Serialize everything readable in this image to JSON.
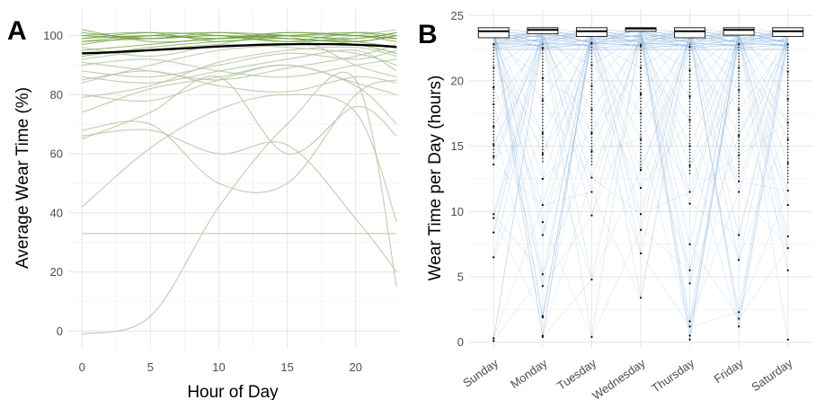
{
  "chart_data": [
    {
      "panel_label": "A",
      "type": "line",
      "xlabel": "Hour of Day",
      "ylabel": "Average Wear Time (%)",
      "xlim": [
        -1,
        23.3
      ],
      "ylim": [
        -6,
        109
      ],
      "x_ticks": [
        0,
        5,
        10,
        15,
        20
      ],
      "y_ticks": [
        0,
        20,
        40,
        60,
        80,
        100
      ],
      "grid": true,
      "colors": {
        "individual_high": "#6a9e3a",
        "individual_low": "#b9c7a6",
        "mean": "#000000"
      },
      "mean_series": {
        "x": [
          0,
          2,
          4,
          6,
          8,
          10,
          12,
          14,
          16,
          18,
          20,
          22,
          23
        ],
        "y": [
          94,
          94.3,
          94.8,
          95.3,
          95.8,
          96.3,
          96.7,
          97.0,
          97.1,
          97.1,
          96.9,
          96.5,
          96.1
        ]
      },
      "individual_series": [
        {
          "x": [
            0,
            5,
            10,
            15,
            20,
            23
          ],
          "y": [
            -1,
            5,
            42,
            70,
            85,
            15
          ]
        },
        {
          "x": [
            0,
            5,
            10,
            15,
            20,
            23
          ],
          "y": [
            42,
            62,
            75,
            80,
            74,
            37
          ]
        },
        {
          "x": [
            0,
            5,
            10,
            15,
            20,
            23
          ],
          "y": [
            33,
            33,
            33,
            33,
            33,
            33
          ]
        },
        {
          "x": [
            0,
            5,
            10,
            15,
            20,
            23
          ],
          "y": [
            66,
            68,
            60,
            63,
            38,
            20
          ]
        },
        {
          "x": [
            0,
            5,
            10,
            15,
            20,
            23
          ],
          "y": [
            68,
            70,
            50,
            50,
            80,
            85
          ]
        },
        {
          "x": [
            0,
            5,
            10,
            15,
            20,
            23
          ],
          "y": [
            65,
            74,
            86,
            60,
            76,
            66
          ]
        },
        {
          "x": [
            0,
            5,
            10,
            15,
            20,
            23
          ],
          "y": [
            80,
            78,
            85,
            90,
            83,
            70
          ]
        },
        {
          "x": [
            0,
            5,
            10,
            15,
            20,
            23
          ],
          "y": [
            74,
            82,
            86,
            90,
            84,
            80
          ]
        },
        {
          "x": [
            0,
            5,
            10,
            15,
            20,
            23
          ],
          "y": [
            85,
            88,
            83,
            81,
            86,
            84
          ]
        },
        {
          "x": [
            0,
            5,
            10,
            15,
            20,
            23
          ],
          "y": [
            88,
            86,
            90,
            94,
            92,
            95
          ]
        },
        {
          "x": [
            0,
            5,
            10,
            15,
            20,
            23
          ],
          "y": [
            90,
            92,
            88,
            86,
            90,
            92
          ]
        },
        {
          "x": [
            0,
            5,
            10,
            15,
            20,
            23
          ],
          "y": [
            96,
            93,
            97,
            100,
            90,
            86
          ]
        },
        {
          "x": [
            0,
            5,
            10,
            15,
            20,
            23
          ],
          "y": [
            84,
            90,
            95,
            97,
            100,
            102
          ]
        },
        {
          "x": [
            0,
            5,
            10,
            15,
            20,
            23
          ],
          "y": [
            92,
            95,
            97,
            96,
            94,
            90
          ]
        },
        {
          "x": [
            0,
            5,
            10,
            15,
            20,
            23
          ],
          "y": [
            98,
            99,
            100,
            99,
            98,
            100
          ]
        },
        {
          "x": [
            0,
            5,
            10,
            15,
            20,
            23
          ],
          "y": [
            99,
            100,
            99,
            100,
            101,
            99
          ]
        },
        {
          "x": [
            0,
            5,
            10,
            15,
            20,
            23
          ],
          "y": [
            101,
            99,
            100,
            98,
            99,
            101
          ]
        },
        {
          "x": [
            0,
            5,
            10,
            15,
            20,
            23
          ],
          "y": [
            100,
            101,
            98,
            100,
            100,
            99
          ]
        },
        {
          "x": [
            0,
            5,
            10,
            15,
            20,
            23
          ],
          "y": [
            97,
            100,
            101,
            99,
            98,
            100
          ]
        },
        {
          "x": [
            0,
            5,
            10,
            15,
            20,
            23
          ],
          "y": [
            102,
            98,
            99,
            101,
            100,
            98
          ]
        },
        {
          "x": [
            0,
            5,
            10,
            15,
            20,
            23
          ],
          "y": [
            95,
            97,
            99,
            100,
            98,
            96
          ]
        },
        {
          "x": [
            0,
            5,
            10,
            15,
            20,
            23
          ],
          "y": [
            99,
            101,
            100,
            98,
            101,
            100
          ]
        },
        {
          "x": [
            0,
            5,
            10,
            15,
            20,
            23
          ],
          "y": [
            100,
            99,
            101,
            100,
            99,
            101
          ]
        },
        {
          "x": [
            0,
            5,
            10,
            15,
            20,
            23
          ],
          "y": [
            98,
            100,
            99,
            101,
            100,
            99
          ]
        },
        {
          "x": [
            0,
            5,
            10,
            15,
            20,
            23
          ],
          "y": [
            93,
            96,
            98,
            99,
            97,
            94
          ]
        },
        {
          "x": [
            0,
            5,
            10,
            15,
            20,
            23
          ],
          "y": [
            86,
            84,
            88,
            92,
            95,
            88
          ]
        },
        {
          "x": [
            0,
            5,
            10,
            15,
            20,
            23
          ],
          "y": [
            91,
            88,
            85,
            89,
            93,
            97
          ]
        },
        {
          "x": [
            0,
            5,
            10,
            15,
            20,
            23
          ],
          "y": [
            79,
            83,
            91,
            95,
            96,
            93
          ]
        }
      ]
    },
    {
      "panel_label": "B",
      "type": "boxplot",
      "xlabel": "",
      "ylabel": "Wear Time per Day (hours)",
      "categories": [
        "Sunday",
        "Monday",
        "Tuesday",
        "Wednesday",
        "Thursday",
        "Friday",
        "Saturday"
      ],
      "ylim": [
        -0.5,
        25.5
      ],
      "y_ticks": [
        0,
        5,
        10,
        15,
        20,
        25
      ],
      "grid": true,
      "colors": {
        "connecting_lines": "#7aaad6",
        "points": "#000000",
        "box_fill": "#ffffff"
      },
      "boxes": [
        {
          "q1": 23.3,
          "median": 23.8,
          "q3": 24.0
        },
        {
          "q1": 23.6,
          "median": 23.9,
          "q3": 24.0
        },
        {
          "q1": 23.4,
          "median": 23.8,
          "q3": 24.0
        },
        {
          "q1": 23.9,
          "median": 24.0,
          "q3": 24.0
        },
        {
          "q1": 23.3,
          "median": 23.8,
          "q3": 24.0
        },
        {
          "q1": 23.5,
          "median": 23.9,
          "q3": 24.0
        },
        {
          "q1": 23.4,
          "median": 23.8,
          "q3": 24.0
        }
      ],
      "outliers": [
        [
          22.8,
          21,
          19.5,
          18.2,
          16.5,
          15.1,
          14.2,
          13.6,
          9.8,
          9.5,
          8.4,
          6.5,
          0.3,
          0.1
        ],
        [
          22.5,
          20.2,
          18.5,
          16,
          14.4,
          12.5,
          10.5,
          9.2,
          8.2,
          5.2,
          4.3,
          2,
          1.9,
          0.5,
          0.4
        ],
        [
          22.9,
          21.2,
          19.6,
          17.8,
          16,
          14.6,
          12.6,
          11.5,
          9.7,
          4.8,
          0.4
        ],
        [
          22.7,
          21,
          19,
          17.5,
          15.5,
          13.2,
          11.8,
          9.8,
          8.6,
          6.8,
          3.4
        ],
        [
          22.6,
          20.8,
          18.8,
          17,
          15,
          13.5,
          11.5,
          10.6,
          7.5,
          5.5,
          4.5,
          1.6,
          1.2,
          0.5,
          0.2
        ],
        [
          22.8,
          21,
          19.3,
          17.8,
          15.8,
          14.3,
          12.3,
          11.5,
          8.2,
          6.3,
          2.3,
          1.8,
          1.2
        ],
        [
          22.8,
          20.7,
          18.6,
          16.8,
          15.5,
          13.7,
          11.6,
          10.5,
          8.1,
          7.2,
          5.5,
          0.2
        ]
      ]
    }
  ]
}
